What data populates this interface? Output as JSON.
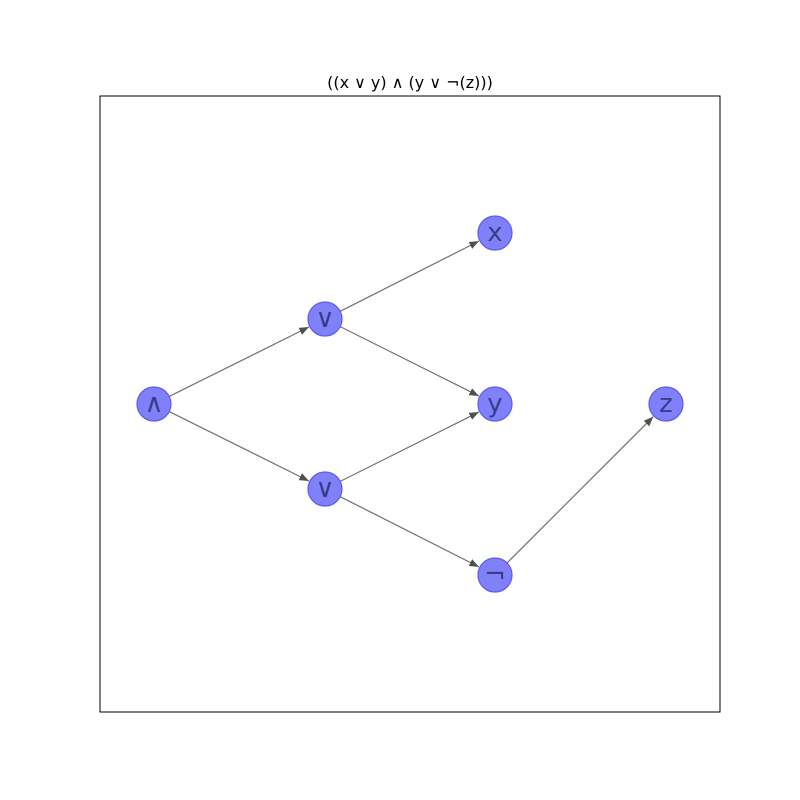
{
  "title": "((x ∨ y) ∧ (y ∨ ¬(z)))",
  "colors": {
    "node_fill": "#8080f8",
    "node_stroke": "#5a5af0",
    "edge": "#707070",
    "label": "#3b3b8c"
  },
  "nodes": [
    {
      "id": "and",
      "label": "∧"
    },
    {
      "id": "or1",
      "label": "∨"
    },
    {
      "id": "or2",
      "label": "∨"
    },
    {
      "id": "x",
      "label": "x"
    },
    {
      "id": "y",
      "label": "y"
    },
    {
      "id": "not",
      "label": "¬"
    },
    {
      "id": "z",
      "label": "z"
    }
  ],
  "edges": [
    {
      "from": "and",
      "to": "or1"
    },
    {
      "from": "and",
      "to": "or2"
    },
    {
      "from": "or1",
      "to": "x"
    },
    {
      "from": "or1",
      "to": "y"
    },
    {
      "from": "or2",
      "to": "y"
    },
    {
      "from": "or2",
      "to": "not"
    },
    {
      "from": "not",
      "to": "z"
    }
  ]
}
